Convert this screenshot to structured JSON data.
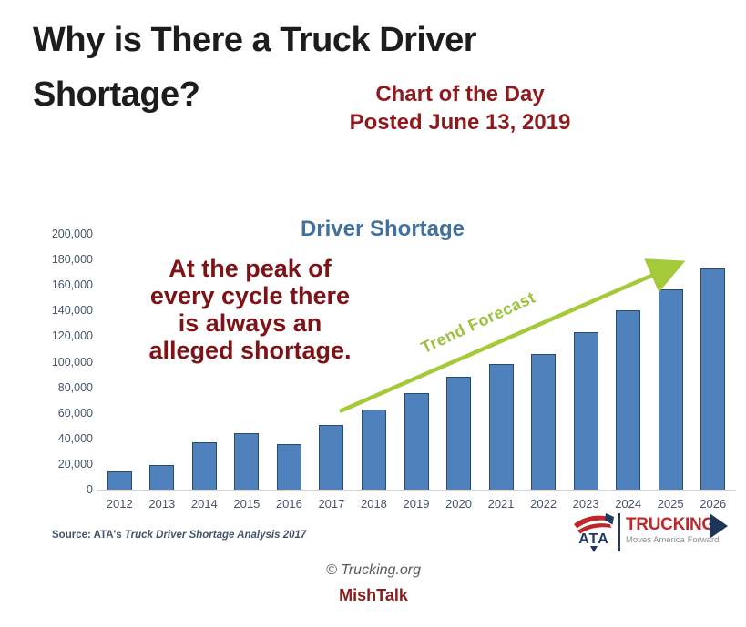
{
  "header": {
    "title": "Why is There a Truck Driver Shortage?",
    "stamp_line1": "Chart of the Day",
    "stamp_line2": "Posted June 13, 2019"
  },
  "annotation": {
    "lines": [
      "At the peak of",
      "every cycle there",
      "is always an",
      "alleged shortage."
    ]
  },
  "chart_data": {
    "type": "bar",
    "title": "Driver Shortage",
    "categories": [
      "2012",
      "2013",
      "2014",
      "2015",
      "2016",
      "2017",
      "2018",
      "2019",
      "2020",
      "2021",
      "2022",
      "2023",
      "2024",
      "2025",
      "2026"
    ],
    "values": [
      15000,
      20000,
      38000,
      45000,
      36500,
      51000,
      63000,
      76000,
      89000,
      99000,
      107000,
      124000,
      141000,
      157000,
      174000
    ],
    "xlabel": "",
    "ylabel": "",
    "ylim": [
      0,
      200000
    ],
    "ytick_step": 20000,
    "yticks": [
      "0",
      "20,000",
      "40,000",
      "60,000",
      "80,000",
      "100,000",
      "120,000",
      "140,000",
      "160,000",
      "180,000",
      "200,000"
    ],
    "grid": false,
    "legend": "none",
    "bar_color": "#4f81bd",
    "bar_border_color": "#2a4a72",
    "trend_annotation": {
      "label": "Trend Forecast",
      "color": "#9cc23c",
      "arrow_color": "#a4ca3a",
      "arrow_from_category": "2017",
      "arrow_to_category": "2026"
    }
  },
  "source": {
    "prefix": "Source: ATA's ",
    "title_italic": "Truck Driver Shortage Analysis 2017"
  },
  "logo": {
    "ata": "ATA",
    "brand": "TRUCKING",
    "tagline": "Moves America Forward"
  },
  "footer": {
    "copyright": "© Trucking.org",
    "site": "MishTalk"
  },
  "colors": {
    "headline": "#1d1d1d",
    "stamp": "#8e1b1e",
    "annotation": "#7d1316",
    "chart_title": "#41719c",
    "axis_text": "#44546a",
    "logo_red": "#c0272d",
    "logo_navy": "#1f3864",
    "site_red": "#8b1a1a"
  }
}
